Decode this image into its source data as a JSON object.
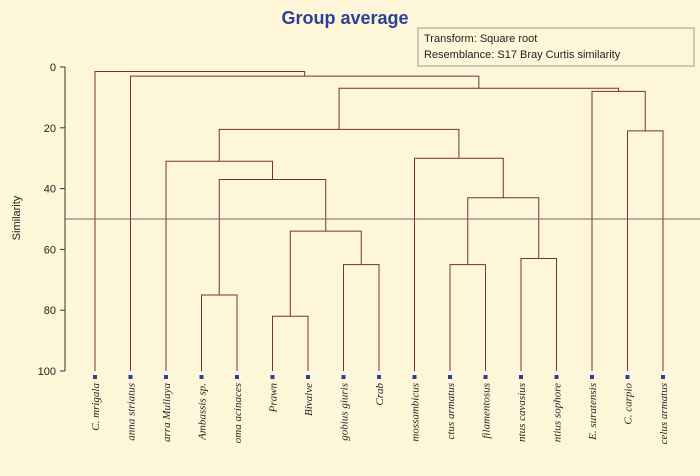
{
  "chart_data": {
    "type": "dendrogram",
    "title": "Group average",
    "ylabel": "Similarity",
    "ylim": [
      0,
      100
    ],
    "yticks": [
      0,
      20,
      40,
      60,
      80,
      100
    ],
    "legend": {
      "transform": "Transform: Square root",
      "resemblance": "Resemblance: S17 Bray Curtis similarity"
    },
    "cut_line_similarity": 50,
    "leaves": [
      "C. mrigala",
      "anna striatus",
      "arra Mullaya",
      "Ambassis sp.",
      "oma acinaces",
      "Prawn",
      "Bivalve",
      "gobius giuris",
      "Crab",
      "mossambicus",
      "ctus armatus",
      "filamentosus",
      "ntus cavasius",
      "ntius sophore",
      "E. suratensis",
      "C. carpio",
      "celus armatus"
    ],
    "merges": [
      {
        "a": "L3",
        "b": "L4",
        "similarity": 75
      },
      {
        "a": "L5",
        "b": "L6",
        "similarity": 82
      },
      {
        "a": "L7",
        "b": "L8",
        "similarity": 65
      },
      {
        "a": "M1",
        "b": "M2",
        "similarity": 54
      },
      {
        "a": "M0",
        "b": "M3",
        "similarity": 37
      },
      {
        "a": "L2",
        "b": "M4",
        "similarity": 31
      },
      {
        "a": "L10",
        "b": "L11",
        "similarity": 65
      },
      {
        "a": "L12",
        "b": "L13",
        "similarity": 63
      },
      {
        "a": "M6",
        "b": "M7",
        "similarity": 43
      },
      {
        "a": "L9",
        "b": "M8",
        "similarity": 30
      },
      {
        "a": "M5",
        "b": "M9",
        "similarity": 20.5
      },
      {
        "a": "L15",
        "b": "L16",
        "similarity": 21
      },
      {
        "a": "L14",
        "b": "M11",
        "similarity": 8
      },
      {
        "a": "M10",
        "b": "M12",
        "similarity": 7
      },
      {
        "a": "L1",
        "b": "M13",
        "similarity": 3
      },
      {
        "a": "L0",
        "b": "M14",
        "similarity": 1.5
      }
    ]
  },
  "colors": {
    "background": "#fdf6d8",
    "title": "#2d3f9a",
    "branch": "#7a2e3a",
    "axis": "#333333",
    "marker": "#2d3f9a"
  }
}
